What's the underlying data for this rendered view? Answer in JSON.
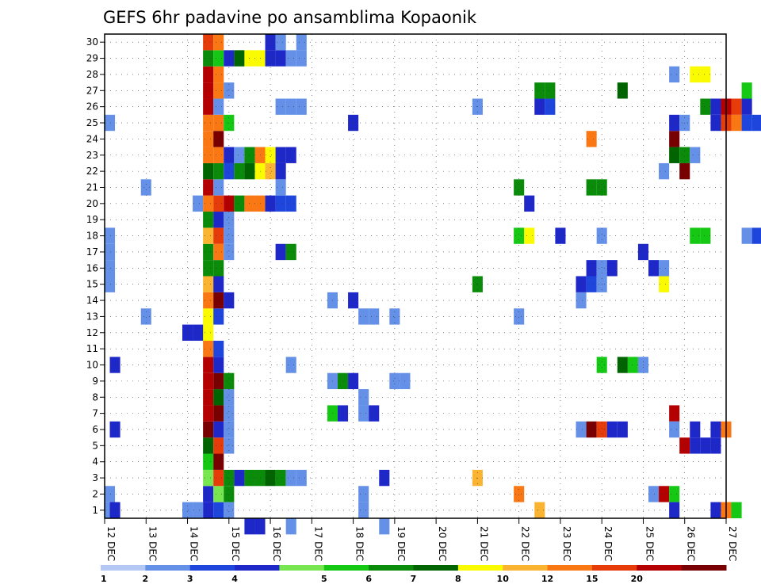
{
  "chart_data": {
    "type": "heatmap",
    "title": "GEFS 6hr padavine po ansamblima Kopaonik",
    "xlabel": "",
    "ylabel": "",
    "x_tick_labels": [
      "12 DEC",
      "13 DEC",
      "14 DEC",
      "15 DEC",
      "16 DEC",
      "17 DEC",
      "18 DEC",
      "19 DEC",
      "20 DEC",
      "21 DEC",
      "22 DEC",
      "23 DEC",
      "24 DEC",
      "25 DEC",
      "26 DEC",
      "27 DEC"
    ],
    "y_tick_labels": [
      "1",
      "2",
      "3",
      "4",
      "5",
      "6",
      "7",
      "8",
      "9",
      "10",
      "11",
      "12",
      "13",
      "14",
      "15",
      "16",
      "17",
      "18",
      "19",
      "20",
      "21",
      "22",
      "23",
      "24",
      "25",
      "26",
      "27",
      "28",
      "29",
      "30"
    ],
    "x_range_steps": [
      0,
      60
    ],
    "steps_per_day": 4,
    "y_range_members": [
      0,
      30
    ],
    "grid": "dotted",
    "colorbar": {
      "position": "bottom",
      "labels": [
        "1",
        "2",
        "3",
        "4",
        "5",
        "6",
        "7",
        "8",
        "10",
        "12",
        "15",
        "20"
      ],
      "colors": [
        "#b4c8f5",
        "#6490e8",
        "#1e46dc",
        "#1e28c8",
        "#78e650",
        "#14c814",
        "#0a8c0a",
        "#006400",
        "#fafa00",
        "#fab432",
        "#fa7814",
        "#e63c0a",
        "#b40000",
        "#780000"
      ]
    },
    "cells": [
      [
        10,
        0,
        3
      ],
      [
        10,
        1,
        3
      ],
      [
        10,
        2,
        4
      ],
      [
        10,
        3,
        5
      ],
      [
        10,
        4,
        7
      ],
      [
        10,
        5,
        13
      ],
      [
        10,
        6,
        12
      ],
      [
        10,
        7,
        12
      ],
      [
        10,
        8,
        12
      ],
      [
        10,
        9,
        12
      ],
      [
        10,
        10,
        10
      ],
      [
        10,
        11,
        8
      ],
      [
        10,
        12,
        8
      ],
      [
        10,
        13,
        10
      ],
      [
        10,
        14,
        9
      ],
      [
        10,
        15,
        6
      ],
      [
        10,
        16,
        6
      ],
      [
        10,
        17,
        9
      ],
      [
        10,
        18,
        6
      ],
      [
        10,
        19,
        10
      ],
      [
        10,
        20,
        12
      ],
      [
        10,
        21,
        7
      ],
      [
        10,
        22,
        10
      ],
      [
        10,
        23,
        10
      ],
      [
        10,
        24,
        10
      ],
      [
        10,
        25,
        12
      ],
      [
        10,
        26,
        12
      ],
      [
        10,
        27,
        12
      ],
      [
        10,
        28,
        6
      ],
      [
        10,
        29,
        11
      ],
      [
        11,
        0,
        2
      ],
      [
        11,
        1,
        4
      ],
      [
        11,
        2,
        11
      ],
      [
        11,
        3,
        13
      ],
      [
        11,
        4,
        11
      ],
      [
        11,
        5,
        3
      ],
      [
        11,
        6,
        13
      ],
      [
        11,
        7,
        7
      ],
      [
        11,
        8,
        13
      ],
      [
        11,
        9,
        3
      ],
      [
        11,
        10,
        2
      ],
      [
        11,
        12,
        2
      ],
      [
        11,
        13,
        13
      ],
      [
        11,
        14,
        3
      ],
      [
        11,
        15,
        6
      ],
      [
        11,
        16,
        10
      ],
      [
        11,
        17,
        11
      ],
      [
        11,
        18,
        3
      ],
      [
        11,
        19,
        11
      ],
      [
        11,
        20,
        1
      ],
      [
        11,
        21,
        6
      ],
      [
        11,
        22,
        10
      ],
      [
        11,
        23,
        13
      ],
      [
        11,
        24,
        10
      ],
      [
        11,
        25,
        1
      ],
      [
        11,
        26,
        10
      ],
      [
        11,
        27,
        10
      ],
      [
        11,
        28,
        5
      ],
      [
        11,
        29,
        10
      ],
      [
        12,
        0,
        1
      ],
      [
        12,
        1,
        6
      ],
      [
        12,
        2,
        6
      ],
      [
        12,
        4,
        1
      ],
      [
        12,
        5,
        1
      ],
      [
        12,
        6,
        1
      ],
      [
        12,
        7,
        1
      ],
      [
        12,
        8,
        6
      ],
      [
        12,
        13,
        3
      ],
      [
        12,
        16,
        1
      ],
      [
        12,
        17,
        1
      ],
      [
        12,
        18,
        1
      ],
      [
        12,
        19,
        12
      ],
      [
        12,
        21,
        2
      ],
      [
        12,
        22,
        3
      ],
      [
        12,
        24,
        5
      ],
      [
        12,
        26,
        1
      ],
      [
        12,
        28,
        3
      ],
      [
        9,
        0,
        1
      ],
      [
        9,
        11,
        3
      ],
      [
        9,
        19,
        1
      ],
      [
        13,
        2,
        3
      ],
      [
        13,
        19,
        6
      ],
      [
        13,
        21,
        6
      ],
      [
        13,
        22,
        1
      ],
      [
        13,
        28,
        7
      ],
      [
        14,
        -1,
        3
      ],
      [
        14,
        2,
        6
      ],
      [
        14,
        19,
        10
      ],
      [
        14,
        21,
        7
      ],
      [
        14,
        22,
        6
      ],
      [
        14,
        28,
        8
      ],
      [
        15,
        -1,
        3
      ],
      [
        15,
        2,
        6
      ],
      [
        15,
        19,
        10
      ],
      [
        15,
        21,
        8
      ],
      [
        15,
        22,
        10
      ],
      [
        15,
        28,
        8
      ],
      [
        16,
        2,
        7
      ],
      [
        16,
        19,
        3
      ],
      [
        16,
        21,
        9
      ],
      [
        16,
        22,
        8
      ],
      [
        16,
        28,
        3
      ],
      [
        16,
        29,
        3
      ],
      [
        17,
        2,
        6
      ],
      [
        17,
        16,
        3
      ],
      [
        17,
        19,
        2
      ],
      [
        17,
        20,
        1
      ],
      [
        17,
        21,
        3
      ],
      [
        17,
        22,
        3
      ],
      [
        17,
        25,
        1
      ],
      [
        17,
        28,
        3
      ],
      [
        17,
        29,
        1
      ],
      [
        18,
        -1,
        1
      ],
      [
        18,
        2,
        1
      ],
      [
        18,
        9,
        1
      ],
      [
        18,
        16,
        6
      ],
      [
        18,
        19,
        2
      ],
      [
        18,
        22,
        3
      ],
      [
        18,
        25,
        1
      ],
      [
        18,
        28,
        1
      ],
      [
        19,
        2,
        1
      ],
      [
        19,
        25,
        1
      ],
      [
        19,
        28,
        1
      ],
      [
        19,
        29,
        1
      ],
      [
        0,
        24,
        1
      ],
      [
        0,
        16,
        1
      ],
      [
        0,
        17,
        1
      ],
      [
        0,
        15,
        1
      ],
      [
        0,
        14,
        1
      ],
      [
        0,
        1,
        1
      ],
      [
        0,
        0,
        1
      ],
      [
        1,
        0,
        3
      ],
      [
        1,
        5,
        3
      ],
      [
        1,
        9,
        3
      ],
      [
        4,
        12,
        1
      ],
      [
        4,
        20,
        1
      ],
      [
        8,
        0,
        1
      ],
      [
        8,
        11,
        3
      ],
      [
        22,
        8,
        1
      ],
      [
        22,
        6,
        5
      ],
      [
        22,
        13,
        1
      ],
      [
        23,
        8,
        6
      ],
      [
        23,
        6,
        3
      ],
      [
        24,
        8,
        3
      ],
      [
        24,
        13,
        3
      ],
      [
        24,
        24,
        3
      ],
      [
        25,
        0,
        1
      ],
      [
        25,
        1,
        1
      ],
      [
        25,
        6,
        1
      ],
      [
        25,
        7,
        1
      ],
      [
        25,
        12,
        1
      ],
      [
        26,
        6,
        3
      ],
      [
        26,
        12,
        1
      ],
      [
        27,
        -1,
        1
      ],
      [
        27,
        2,
        3
      ],
      [
        28,
        8,
        1
      ],
      [
        28,
        12,
        1
      ],
      [
        29,
        8,
        1
      ],
      [
        36,
        2,
        9
      ],
      [
        36,
        14,
        6
      ],
      [
        36,
        25,
        1
      ],
      [
        40,
        1,
        10
      ],
      [
        40,
        12,
        1
      ],
      [
        40,
        20,
        6
      ],
      [
        40,
        17,
        5
      ],
      [
        41,
        17,
        8
      ],
      [
        41,
        19,
        3
      ],
      [
        42,
        0,
        9
      ],
      [
        42,
        25,
        3
      ],
      [
        42,
        26,
        6
      ],
      [
        43,
        25,
        2
      ],
      [
        43,
        26,
        6
      ],
      [
        44,
        17,
        3
      ],
      [
        46,
        5,
        1
      ],
      [
        46,
        13,
        1
      ],
      [
        46,
        14,
        3
      ],
      [
        47,
        5,
        13
      ],
      [
        47,
        14,
        2
      ],
      [
        47,
        15,
        3
      ],
      [
        47,
        20,
        6
      ],
      [
        47,
        23,
        10
      ],
      [
        48,
        5,
        11
      ],
      [
        48,
        14,
        1
      ],
      [
        48,
        15,
        1
      ],
      [
        48,
        9,
        5
      ],
      [
        48,
        17,
        1
      ],
      [
        48,
        20,
        6
      ],
      [
        49,
        5,
        3
      ],
      [
        49,
        15,
        3
      ],
      [
        50,
        5,
        3
      ],
      [
        50,
        9,
        7
      ],
      [
        50,
        26,
        7
      ],
      [
        51,
        9,
        5
      ],
      [
        52,
        9,
        1
      ],
      [
        52,
        16,
        3
      ],
      [
        53,
        1,
        1
      ],
      [
        53,
        15,
        3
      ],
      [
        54,
        1,
        12
      ],
      [
        54,
        14,
        8
      ],
      [
        54,
        15,
        1
      ],
      [
        54,
        21,
        1
      ],
      [
        55,
        1,
        5
      ],
      [
        55,
        0,
        3
      ],
      [
        55,
        6,
        12
      ],
      [
        55,
        5,
        1
      ],
      [
        55,
        22,
        7
      ],
      [
        55,
        23,
        13
      ],
      [
        55,
        24,
        3
      ],
      [
        55,
        27,
        1
      ],
      [
        56,
        4,
        12
      ],
      [
        56,
        21,
        13
      ],
      [
        56,
        22,
        6
      ],
      [
        56,
        24,
        1
      ],
      [
        57,
        4,
        3
      ],
      [
        57,
        5,
        3
      ],
      [
        57,
        17,
        5
      ],
      [
        57,
        22,
        1
      ],
      [
        57,
        27,
        8
      ],
      [
        58,
        4,
        3
      ],
      [
        58,
        17,
        5
      ],
      [
        58,
        25,
        6
      ],
      [
        58,
        27,
        8
      ],
      [
        59,
        4,
        3
      ],
      [
        59,
        5,
        3
      ],
      [
        59,
        0,
        3
      ],
      [
        59,
        24,
        3
      ],
      [
        59,
        25,
        3
      ],
      [
        60,
        0,
        10
      ],
      [
        60,
        5,
        10
      ],
      [
        60,
        24,
        11
      ],
      [
        60,
        25,
        12
      ],
      [
        61,
        0,
        5
      ],
      [
        61,
        24,
        10
      ],
      [
        61,
        25,
        11
      ],
      [
        62,
        17,
        1
      ],
      [
        62,
        24,
        2
      ],
      [
        62,
        25,
        3
      ],
      [
        62,
        26,
        5
      ],
      [
        63,
        17,
        2
      ],
      [
        63,
        24,
        2
      ],
      [
        64,
        2,
        6
      ],
      [
        64,
        17,
        1
      ]
    ]
  }
}
